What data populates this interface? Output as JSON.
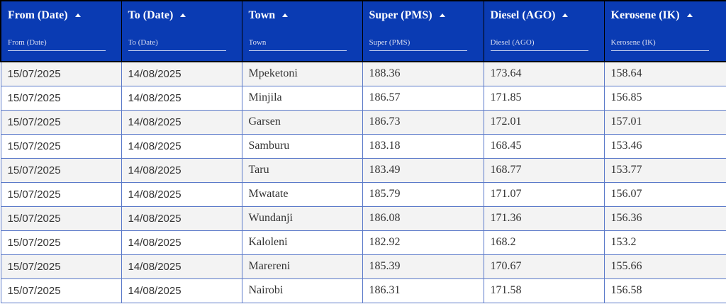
{
  "table": {
    "columns": [
      {
        "key": "from",
        "label": "From (Date)",
        "filter_placeholder": "From (Date)"
      },
      {
        "key": "to",
        "label": "To (Date)",
        "filter_placeholder": "To (Date)"
      },
      {
        "key": "town",
        "label": "Town",
        "filter_placeholder": "Town"
      },
      {
        "key": "super",
        "label": "Super (PMS)",
        "filter_placeholder": "Super (PMS)"
      },
      {
        "key": "diesel",
        "label": "Diesel (AGO)",
        "filter_placeholder": "Diesel (AGO)"
      },
      {
        "key": "kerosene",
        "label": "Kerosene (IK)",
        "filter_placeholder": "Kerosene (IK)"
      }
    ],
    "rows": [
      [
        "15/07/2025",
        "14/08/2025",
        "Mpeketoni",
        "188.36",
        "173.64",
        "158.64"
      ],
      [
        "15/07/2025",
        "14/08/2025",
        "Minjila",
        "186.57",
        "171.85",
        "156.85"
      ],
      [
        "15/07/2025",
        "14/08/2025",
        "Garsen",
        "186.73",
        "172.01",
        "157.01"
      ],
      [
        "15/07/2025",
        "14/08/2025",
        "Samburu",
        "183.18",
        "168.45",
        "153.46"
      ],
      [
        "15/07/2025",
        "14/08/2025",
        "Taru",
        "183.49",
        "168.77",
        "153.77"
      ],
      [
        "15/07/2025",
        "14/08/2025",
        "Mwatate",
        "185.79",
        "171.07",
        "156.07"
      ],
      [
        "15/07/2025",
        "14/08/2025",
        "Wundanji",
        "186.08",
        "171.36",
        "156.36"
      ],
      [
        "15/07/2025",
        "14/08/2025",
        "Kaloleni",
        "182.92",
        "168.2",
        "153.2"
      ],
      [
        "15/07/2025",
        "14/08/2025",
        "Marereni",
        "185.39",
        "170.67",
        "155.66"
      ],
      [
        "15/07/2025",
        "14/08/2025",
        "Nairobi",
        "186.31",
        "171.58",
        "156.58"
      ]
    ]
  },
  "colors": {
    "header_bg": "#0a3bb3",
    "row_alt_bg": "#f3f3f3",
    "grid_line": "#5a79c9"
  },
  "icons": {
    "sort": "sort-up-icon"
  }
}
